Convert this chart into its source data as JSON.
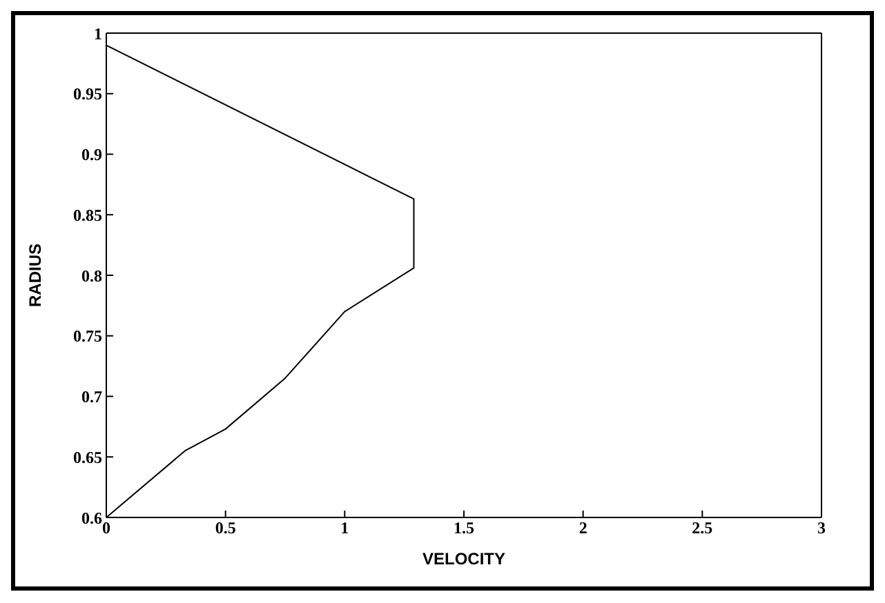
{
  "chart_data": {
    "type": "line",
    "xlabel": "VELOCITY",
    "ylabel": "RADIUS",
    "x": [
      0,
      1.29,
      1.29,
      1,
      0.75,
      0.5,
      0.33,
      0
    ],
    "series": [
      {
        "color": "#000000",
        "values": [
          0.99,
          0.863,
          0.806,
          0.77,
          0.715,
          0.673,
          0.655,
          0.6
        ]
      }
    ],
    "xlim": [
      0,
      3
    ],
    "xticks": [
      0,
      0.5,
      1,
      1.5,
      2,
      2.5,
      3
    ],
    "ylim": [
      0.6,
      1
    ],
    "yticks": [
      0.6,
      0.65,
      0.7,
      0.75,
      0.8,
      0.85,
      0.9,
      0.95,
      1
    ],
    "grid": false,
    "legend": false,
    "marker": "none",
    "line_style": "solid"
  }
}
